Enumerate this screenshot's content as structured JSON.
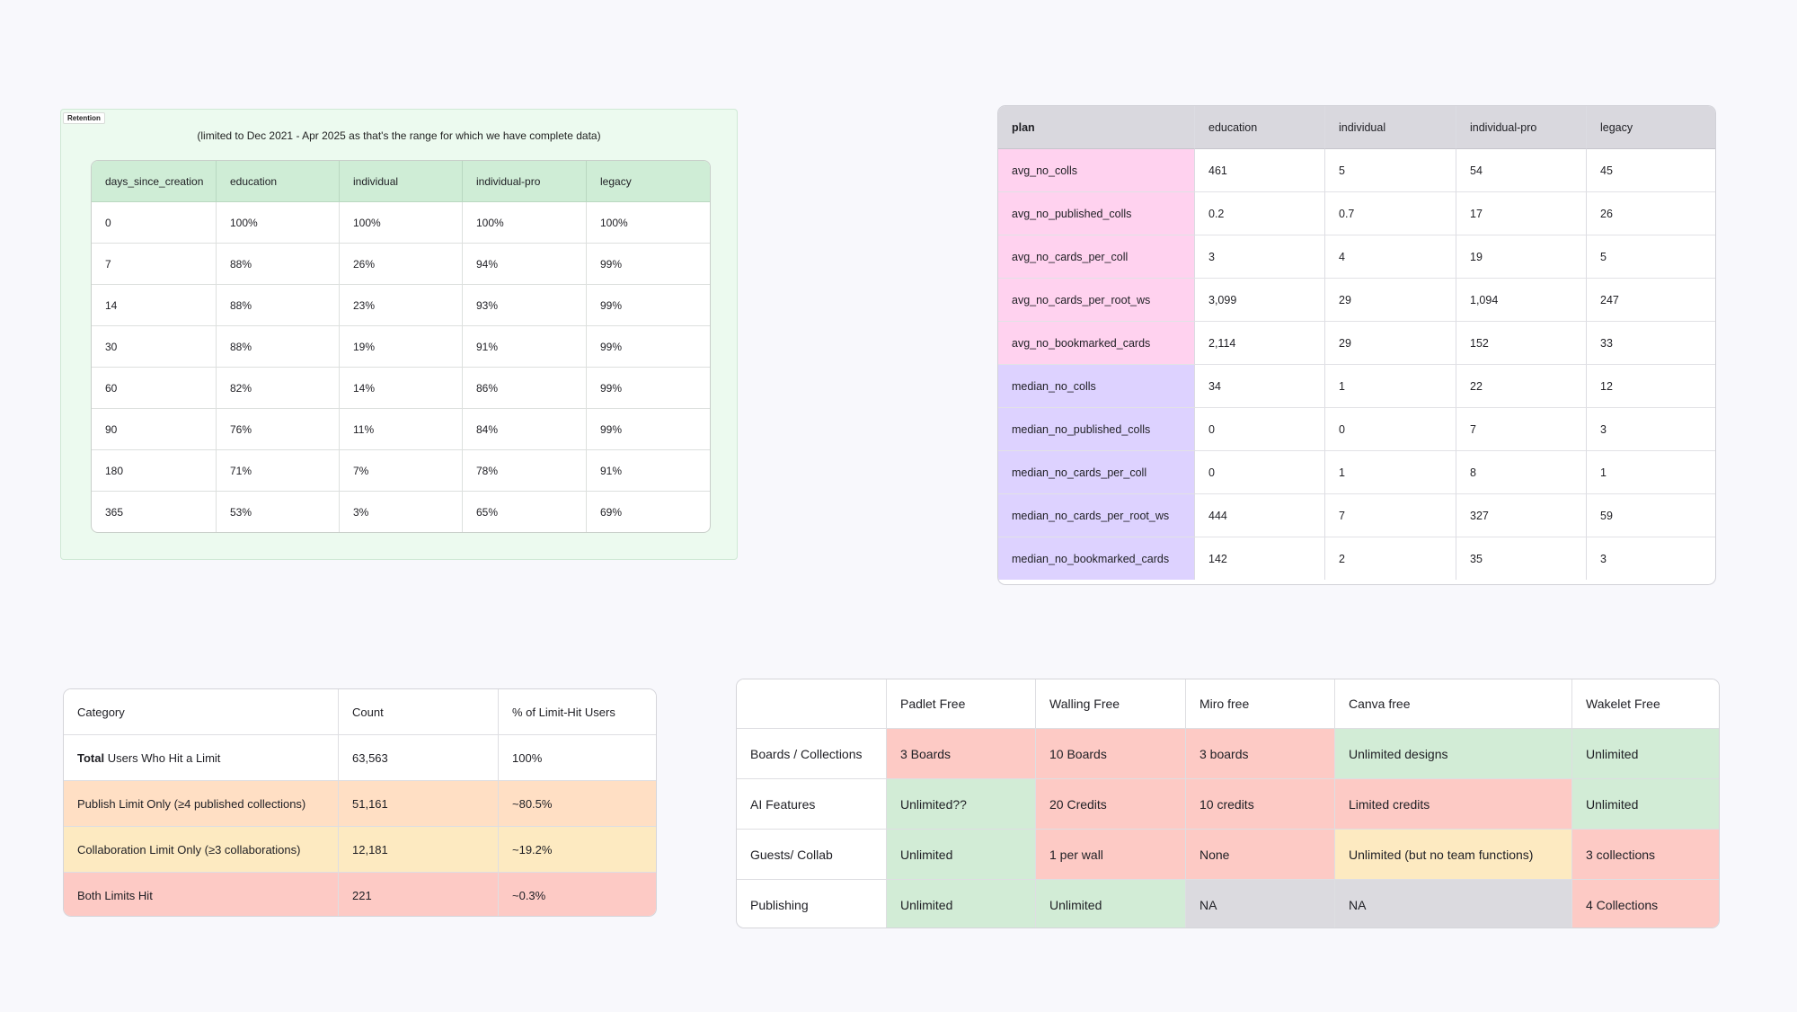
{
  "retention": {
    "label": "Retention",
    "note": "(limited to Dec 2021 - Apr 2025 as that's the range for which we have complete data)",
    "headers": [
      "days_since_creation",
      "education",
      "individual",
      "individual-pro",
      "legacy"
    ],
    "rows": [
      [
        "0",
        "100%",
        "100%",
        "100%",
        "100%"
      ],
      [
        "7",
        "88%",
        "26%",
        "94%",
        "99%"
      ],
      [
        "14",
        "88%",
        "23%",
        "93%",
        "99%"
      ],
      [
        "30",
        "88%",
        "19%",
        "91%",
        "99%"
      ],
      [
        "60",
        "82%",
        "14%",
        "86%",
        "99%"
      ],
      [
        "90",
        "76%",
        "11%",
        "84%",
        "99%"
      ],
      [
        "180",
        "71%",
        "7%",
        "78%",
        "91%"
      ],
      [
        "365",
        "53%",
        "3%",
        "65%",
        "69%"
      ]
    ]
  },
  "plan_metrics": {
    "headers": [
      "plan",
      "education",
      "individual",
      "individual-pro",
      "legacy"
    ],
    "rows": [
      [
        "avg_no_colls",
        "461",
        "5",
        "54",
        "45"
      ],
      [
        "avg_no_published_colls",
        "0.2",
        "0.7",
        "17",
        "26"
      ],
      [
        "avg_no_cards_per_coll",
        "3",
        "4",
        "19",
        "5"
      ],
      [
        "avg_no_cards_per_root_ws",
        "3,099",
        "29",
        "1,094",
        "247"
      ],
      [
        "avg_no_bookmarked_cards",
        "2,114",
        "29",
        "152",
        "33"
      ],
      [
        "median_no_colls",
        "34",
        "1",
        "22",
        "12"
      ],
      [
        "median_no_published_colls",
        "0",
        "0",
        "7",
        "3"
      ],
      [
        "median_no_cards_per_coll",
        "0",
        "1",
        "8",
        "1"
      ],
      [
        "median_no_cards_per_root_ws",
        "444",
        "7",
        "327",
        "59"
      ],
      [
        "median_no_bookmarked_cards",
        "142",
        "2",
        "35",
        "3"
      ]
    ]
  },
  "limit_hits": {
    "headers": [
      "Category",
      "Count",
      "% of Limit-Hit Users"
    ],
    "total_row": {
      "bold": "Total",
      "rest": " Users Who Hit a Limit",
      "count": "63,563",
      "pct": "100%"
    },
    "rows": [
      [
        "Publish Limit Only (≥4 published collections)",
        "51,161",
        "~80.5%"
      ],
      [
        "Collaboration Limit Only (≥3 collaborations)",
        "12,181",
        "~19.2%"
      ],
      [
        "Both Limits Hit",
        "221",
        "~0.3%"
      ]
    ]
  },
  "comparison": {
    "headers": [
      "",
      "Padlet Free",
      "Walling Free",
      "Miro free",
      "Canva free",
      "Wakelet Free"
    ],
    "rows": [
      [
        "Boards / Collections",
        "3 Boards",
        "10 Boards",
        "3 boards",
        "Unlimited designs",
        "Unlimited"
      ],
      [
        "AI Features",
        "Unlimited??",
        "20 Credits",
        "10 credits",
        "Limited credits",
        "Unlimited"
      ],
      [
        "Guests/ Collab",
        "Unlimited",
        "1 per wall",
        "None",
        "Unlimited (but no team functions)",
        "3 collections"
      ],
      [
        "Publishing",
        "Unlimited",
        "Unlimited",
        "NA",
        "NA",
        "4 Collections"
      ]
    ]
  },
  "colors": {
    "retention_bg": "#ecfaef",
    "retention_header": "#cfedd6",
    "plan_header": "#d9d8de",
    "avg_rows": "#ffd2ef",
    "median_rows": "#ddd2ff",
    "red": "#fdcac5",
    "green": "#d2ecd6",
    "yellow": "#fdeac1",
    "peach": "#ffdfc4",
    "grey": "#dbdadf"
  }
}
